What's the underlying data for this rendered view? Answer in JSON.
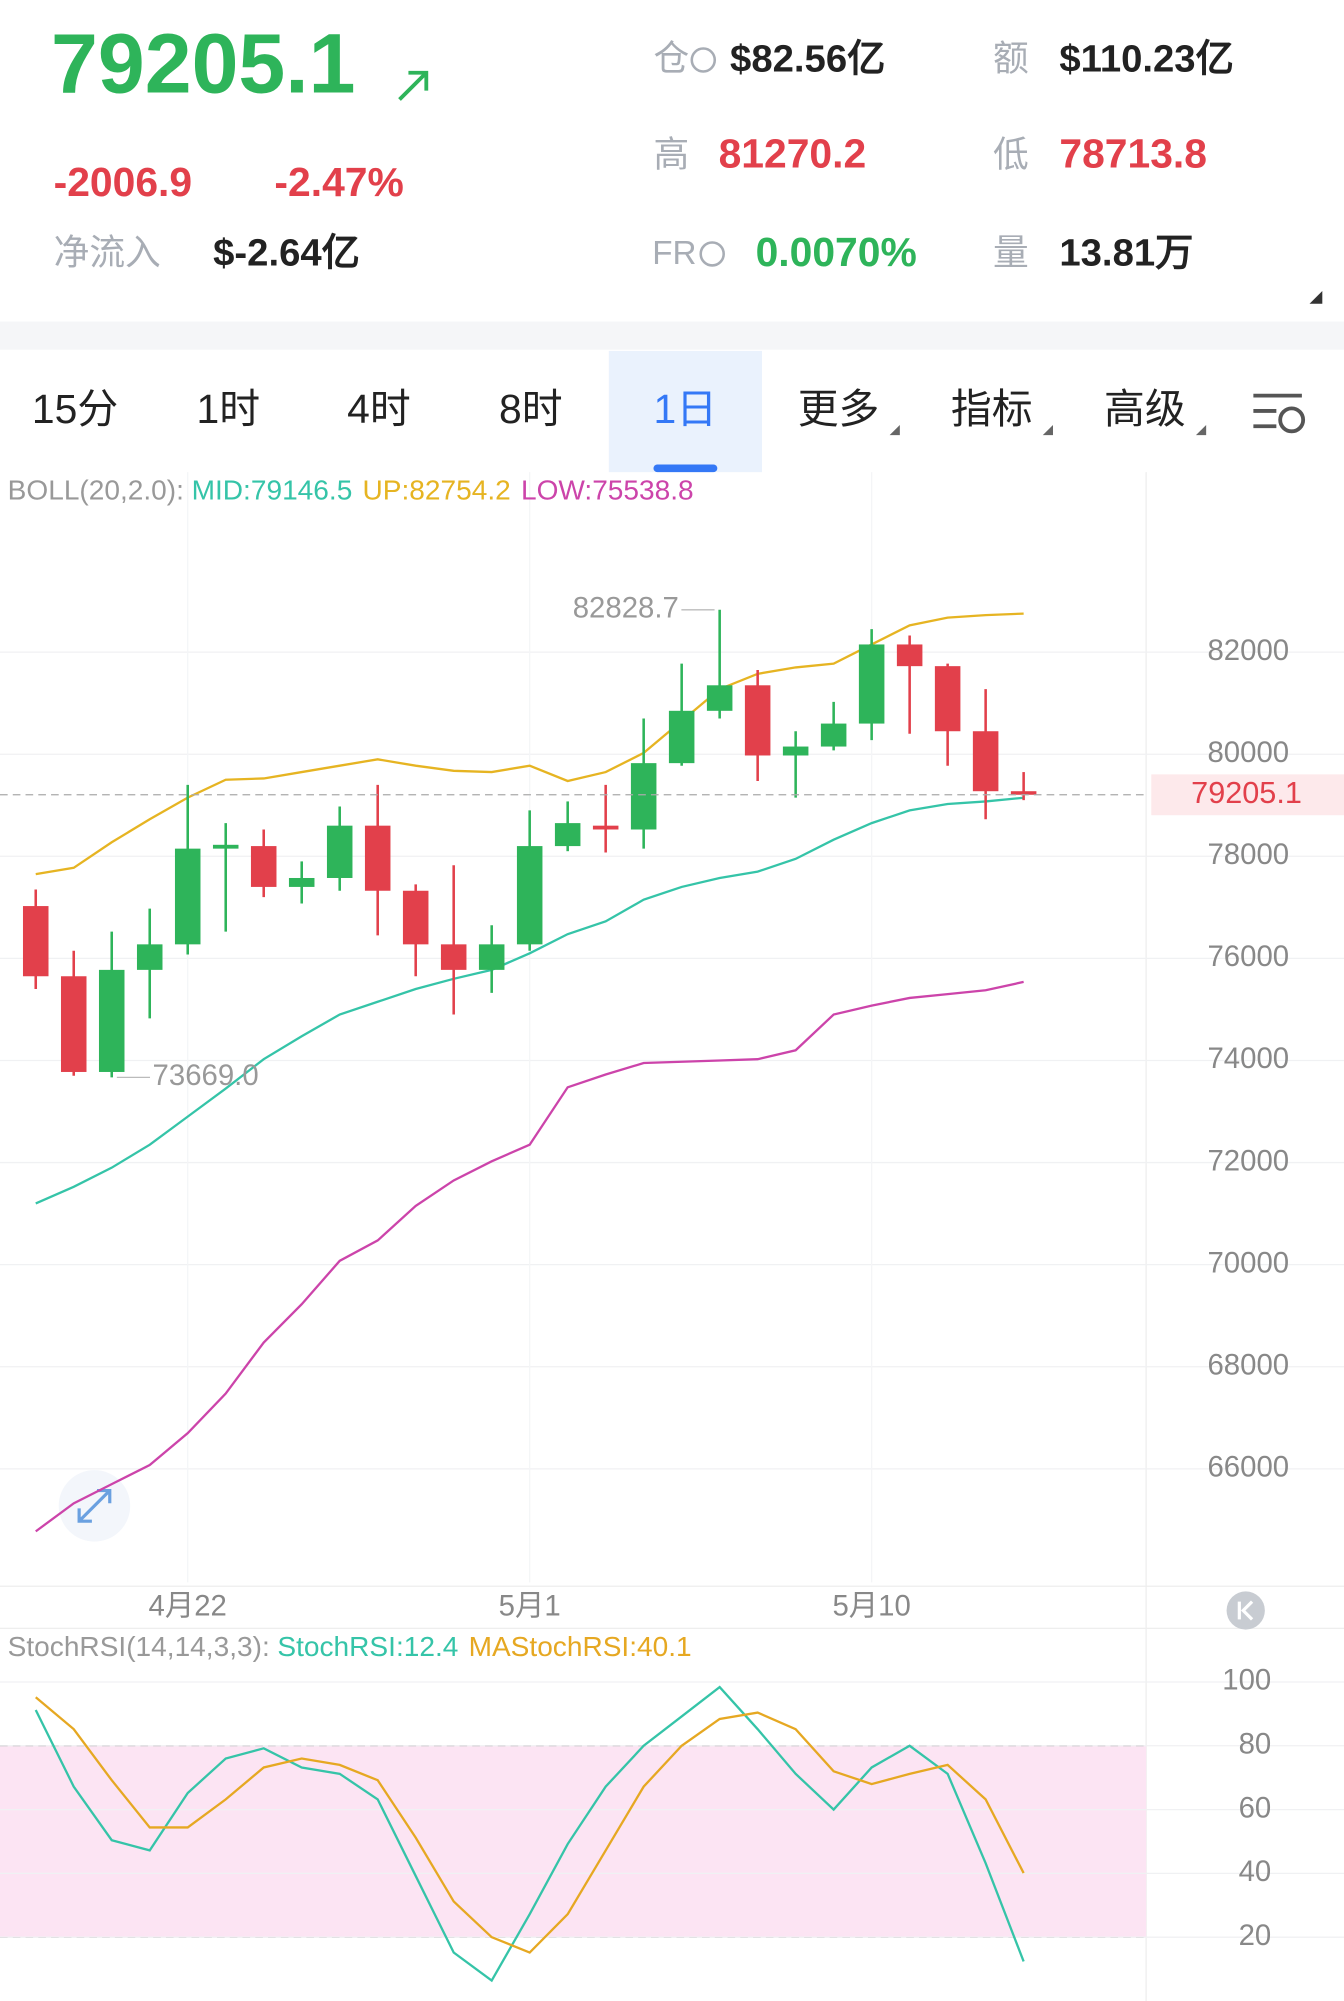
{
  "header": {
    "price": "79205.1",
    "change": "-2006.9",
    "change_pct": "-2.47%",
    "net_inflow_label": "净流入",
    "net_inflow": "$-2.64亿",
    "stats": [
      {
        "label": "仓",
        "value": "$82.56亿"
      },
      {
        "label": "额",
        "value": "$110.23亿"
      },
      {
        "label": "高",
        "value": "81270.2"
      },
      {
        "label": "低",
        "value": "78713.8"
      },
      {
        "label": "FR",
        "value": "0.0070%"
      },
      {
        "label": "量",
        "value": "13.81万"
      }
    ]
  },
  "tabs": [
    "15分",
    "1时",
    "4时",
    "8时",
    "1日",
    "更多",
    "指标",
    "高级"
  ],
  "chart_data": [
    {
      "type": "candlestick",
      "indicator_label": "BOLL(20,2.0):",
      "high_label": "82828.7",
      "low_label": "73669.0",
      "last_price": 79205.1,
      "up_color": "#2eb45a",
      "down_color": "#e2404b",
      "categories": [
        null,
        null,
        null,
        null,
        "4月22",
        null,
        null,
        null,
        null,
        null,
        null,
        null,
        null,
        "5月1",
        null,
        null,
        null,
        null,
        null,
        null,
        null,
        null,
        "5月10",
        null,
        null,
        null,
        null
      ],
      "open": [
        77025,
        75650,
        73775,
        75775,
        76275,
        78150,
        78200,
        77400,
        77575,
        78600,
        77325,
        76275,
        75775,
        76275,
        78200,
        78600,
        78525,
        79825,
        80850,
        81350,
        79975,
        80150,
        80600,
        82150,
        81725,
        80450,
        79275
      ],
      "high": [
        77350,
        76150,
        76525,
        76975,
        79400,
        78650,
        78525,
        77900,
        78975,
        79400,
        77450,
        77825,
        76650,
        78900,
        79075,
        79400,
        80700,
        81775,
        82828.7,
        81650,
        80450,
        81025,
        82450,
        82325,
        81775,
        81275,
        79650
      ],
      "low": [
        75400,
        73700,
        73669,
        74825,
        76075,
        76525,
        77200,
        77075,
        77325,
        76450,
        75650,
        74900,
        75325,
        76150,
        78100,
        78075,
        78150,
        79775,
        80700,
        79475,
        79150,
        80075,
        80275,
        80400,
        79775,
        78725,
        79100
      ],
      "close": [
        75650,
        73775,
        75775,
        76275,
        78150,
        78225,
        77400,
        77575,
        78600,
        77325,
        76275,
        75775,
        76275,
        78200,
        78650,
        78525,
        79825,
        80850,
        81350,
        79975,
        80150,
        80600,
        82150,
        81725,
        80450,
        79275,
        79205.1
      ],
      "series": [
        {
          "name": "MID:79146.5",
          "color": "#35c4a8",
          "values": [
            71200,
            71525,
            71900,
            72350,
            72900,
            73450,
            74025,
            74475,
            74900,
            75150,
            75400,
            75600,
            75775,
            76100,
            76475,
            76725,
            77150,
            77400,
            77575,
            77700,
            77950,
            78325,
            78650,
            78900,
            79025,
            79075,
            79146.5
          ]
        },
        {
          "name": "UP:82754.2",
          "color": "#e6b422",
          "values": [
            77650,
            77775,
            78275,
            78725,
            79150,
            79500,
            79525,
            79650,
            79775,
            79900,
            79775,
            79675,
            79650,
            79775,
            79475,
            79650,
            80025,
            80650,
            81275,
            81575,
            81700,
            81775,
            82150,
            82525,
            82675,
            82725,
            82754.2
          ]
        },
        {
          "name": "LOW:75538.8",
          "color": "#cc44aa",
          "values": [
            64775,
            65325,
            65700,
            66075,
            66700,
            67475,
            68475,
            69225,
            70075,
            70475,
            71150,
            71650,
            72025,
            72350,
            73475,
            73725,
            73950,
            73975,
            74000,
            74025,
            74200,
            74900,
            75075,
            75225,
            75300,
            75375,
            75538.8
          ]
        }
      ],
      "ylim": [
        63775,
        85525
      ],
      "yticks": [
        66000,
        68000,
        70000,
        72000,
        74000,
        76000,
        78000,
        80000,
        82000
      ],
      "grid": true
    },
    {
      "type": "line",
      "indicator_label": "StochRSI(14,14,3,3):",
      "series": [
        {
          "name": "StochRSI:12.4",
          "color": "#35c4a8",
          "values": [
            91.2,
            67.2,
            50.4,
            47.2,
            65.2,
            76,
            79.2,
            73.2,
            71.2,
            63.2,
            39.2,
            15.2,
            6.4,
            27.2,
            49.2,
            67.2,
            80,
            89.2,
            98.4,
            85.2,
            71.2,
            60,
            73.2,
            80,
            71.2,
            43.2,
            12.4
          ]
        },
        {
          "name": "MAStochRSI:40.1",
          "color": "#e6a822",
          "values": [
            95.2,
            85.2,
            69.2,
            54.4,
            54.4,
            63.2,
            73.2,
            76,
            74,
            69.2,
            51.2,
            31.2,
            20,
            15.2,
            27.2,
            47.2,
            67.2,
            80,
            88.4,
            90.4,
            85.2,
            72,
            68,
            71.2,
            74,
            63.2,
            40.1
          ]
        }
      ],
      "band": [
        20,
        80
      ],
      "band_color": "#fce4f3",
      "ylim": [
        0,
        116
      ],
      "yticks": [
        20,
        40,
        60,
        80,
        100
      ]
    }
  ]
}
